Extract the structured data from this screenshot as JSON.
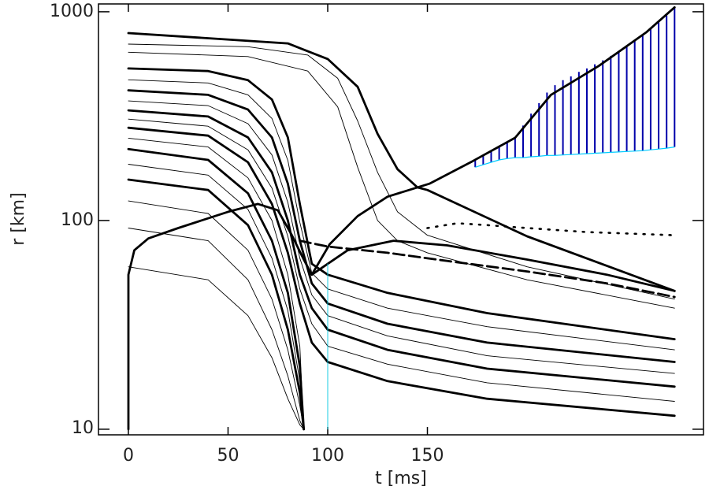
{
  "chart_data": {
    "type": "line",
    "log_y": true,
    "x_label": "t [ms]",
    "y_label": "r [km]",
    "xlim": [
      -15,
      288.5
    ],
    "xticks": [
      0,
      50,
      100,
      150
    ],
    "ylim": [
      9.4,
      1090
    ],
    "yticks": [
      10,
      100,
      1000
    ],
    "series": [
      {
        "style": "thick",
        "color": "#000000",
        "x": [
          0,
          80,
          100,
          115,
          125,
          135,
          145,
          150,
          200,
          274
        ],
        "values": [
          790,
          705,
          594,
          437,
          260,
          176,
          144,
          140,
          84,
          46
        ]
      },
      {
        "style": "thin",
        "color": "#000000",
        "x": [
          0,
          60,
          90,
          105,
          115,
          125,
          135,
          150,
          200,
          274
        ],
        "values": [
          700,
          680,
          620,
          480,
          300,
          170,
          110,
          85,
          60,
          42
        ]
      },
      {
        "style": "thin",
        "color": "#000000",
        "x": [
          0,
          60,
          90,
          105,
          115,
          125,
          135,
          150,
          200,
          274
        ],
        "values": [
          640,
          610,
          520,
          350,
          180,
          100,
          80,
          70,
          52,
          38
        ]
      },
      {
        "style": "thick",
        "color": "#000000",
        "x": [
          0,
          40,
          60,
          72,
          80,
          86,
          92,
          100,
          130,
          180,
          274
        ],
        "values": [
          535,
          520,
          470,
          380,
          250,
          120,
          62,
          55,
          45,
          36,
          27
        ]
      },
      {
        "style": "thin",
        "color": "#000000",
        "x": [
          0,
          40,
          60,
          72,
          80,
          86,
          92,
          100,
          130,
          180,
          274
        ],
        "values": [
          472,
          456,
          400,
          308,
          194,
          98,
          56,
          47,
          38,
          31,
          24
        ]
      },
      {
        "style": "thick",
        "color": "#000000",
        "x": [
          0,
          40,
          60,
          72,
          80,
          86,
          92,
          100,
          130,
          180,
          274
        ],
        "values": [
          420,
          400,
          340,
          250,
          150,
          80,
          50,
          40,
          32,
          26,
          21
        ]
      },
      {
        "style": "thin",
        "color": "#000000",
        "x": [
          0,
          40,
          60,
          72,
          80,
          86,
          92,
          100,
          130,
          180,
          274
        ],
        "values": [
          374,
          355,
          291,
          206,
          122,
          66,
          44,
          35,
          28,
          22.5,
          18.5
        ]
      },
      {
        "style": "thick",
        "color": "#000000",
        "x": [
          0,
          40,
          60,
          72,
          80,
          86,
          92,
          100,
          130,
          180,
          274
        ],
        "values": [
          337,
          315,
          250,
          170,
          100,
          55,
          38,
          30,
          24,
          19.5,
          16
        ]
      },
      {
        "style": "thin",
        "color": "#000000",
        "x": [
          0,
          40,
          60,
          72,
          80,
          86,
          92,
          100,
          130,
          180,
          274
        ],
        "values": [
          306,
          283,
          218,
          143,
          84,
          47,
          32,
          25,
          20.5,
          16.7,
          13.6
        ]
      },
      {
        "style": "thick",
        "color": "#000000",
        "x": [
          0,
          40,
          60,
          72,
          80,
          86,
          92,
          100,
          130,
          180,
          274
        ],
        "values": [
          278,
          255,
          190,
          120,
          70,
          40,
          26,
          21,
          17,
          14,
          11.6
        ]
      },
      {
        "style": "thin",
        "color": "#000000",
        "x": [
          0,
          40,
          60,
          72,
          80,
          86,
          88
        ],
        "values": [
          248,
          225,
          160,
          100,
          55,
          25,
          10
        ]
      },
      {
        "style": "thick",
        "color": "#000000",
        "x": [
          0,
          40,
          60,
          72,
          80,
          86,
          88
        ],
        "values": [
          220,
          195,
          135,
          80,
          45,
          20,
          10
        ]
      },
      {
        "style": "thin",
        "color": "#000000",
        "x": [
          0,
          40,
          60,
          72,
          80,
          86,
          88
        ],
        "values": [
          186,
          165,
          113,
          66,
          37,
          17,
          10
        ]
      },
      {
        "style": "thick",
        "color": "#000000",
        "x": [
          0,
          40,
          60,
          72,
          80,
          86,
          88
        ],
        "values": [
          157,
          140,
          95,
          55,
          30,
          15,
          10
        ]
      },
      {
        "style": "thin",
        "color": "#000000",
        "x": [
          0,
          40,
          60,
          72,
          80,
          86,
          88
        ],
        "values": [
          124,
          108,
          72,
          42,
          24,
          13,
          10
        ]
      },
      {
        "style": "thin",
        "color": "#000000",
        "x": [
          0,
          40,
          60,
          72,
          80,
          86,
          88
        ],
        "values": [
          92,
          80,
          52,
          30,
          18,
          11,
          10
        ]
      },
      {
        "style": "thin",
        "color": "#000000",
        "x": [
          0,
          40,
          60,
          72,
          80,
          86,
          88
        ],
        "values": [
          60,
          52,
          35,
          22,
          14,
          10.5,
          10
        ]
      },
      {
        "style": "thick",
        "color": "#000000",
        "x": [
          0,
          0,
          3,
          10,
          25,
          50,
          65,
          75,
          82,
          88,
          92
        ],
        "values": [
          10,
          55,
          72,
          82,
          92,
          110,
          120,
          112,
          85,
          65,
          55
        ]
      },
      {
        "style": "thick",
        "color": "#000000",
        "x": [
          92,
          101,
          115,
          130,
          151,
          173,
          194,
          212,
          236,
          260,
          274
        ],
        "values": [
          55,
          77,
          105,
          130,
          150,
          193,
          249,
          400,
          550,
          800,
          1050
        ]
      },
      {
        "style": "thick",
        "color": "#000000",
        "x": [
          92,
          110,
          133,
          160,
          200,
          240,
          274
        ],
        "values": [
          55,
          72,
          80,
          76,
          65,
          55,
          46
        ]
      },
      {
        "style": "dashed",
        "color": "#000000",
        "x": [
          86,
          100,
          130,
          160,
          200,
          240,
          274
        ],
        "values": [
          80,
          75,
          70,
          64,
          57,
          50,
          43
        ]
      },
      {
        "style": "dotted",
        "color": "#000000",
        "x": [
          150,
          165,
          180,
          200,
          230,
          260,
          274
        ],
        "values": [
          92,
          97,
          95,
          92,
          88,
          86,
          85
        ]
      },
      {
        "style": "thin",
        "color": "#00c8e0",
        "x": [
          100,
          100
        ],
        "values": [
          10,
          62
        ]
      }
    ],
    "band": {
      "color": "#0000aa",
      "edge_color": "#00ccff",
      "x": [
        174,
        178,
        182,
        186,
        190,
        194,
        198,
        202,
        206,
        210,
        214,
        218,
        222,
        226,
        230,
        234,
        238,
        242,
        246,
        250,
        254,
        258,
        262,
        266,
        270,
        274
      ],
      "high": [
        195,
        205,
        215,
        227,
        238,
        249,
        285,
        325,
        365,
        410,
        445,
        470,
        490,
        515,
        535,
        560,
        585,
        615,
        650,
        690,
        730,
        775,
        830,
        890,
        960,
        1050
      ],
      "low": [
        180,
        185,
        190,
        195,
        198,
        200,
        200,
        202,
        203,
        205,
        205,
        206,
        207,
        208,
        209,
        210,
        211,
        212,
        213,
        214,
        215,
        216,
        218,
        220,
        222,
        225
      ]
    }
  }
}
